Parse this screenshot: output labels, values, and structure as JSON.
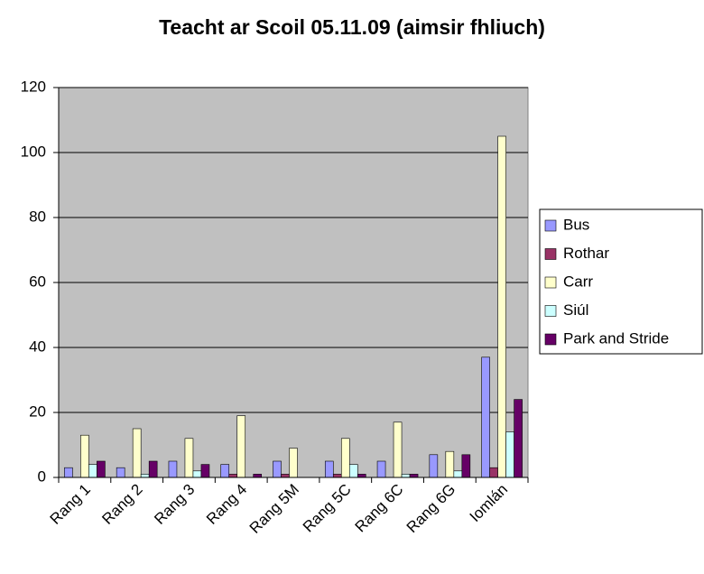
{
  "chart_data": {
    "type": "bar",
    "title": "Teacht ar Scoil 05.11.09 (aimsir fhliuch)",
    "categories": [
      "Rang 1",
      "Rang 2",
      "Rang 3",
      "Rang 4",
      "Rang 5M",
      "Rang 5C",
      "Rang 6C",
      "Rang 6G",
      "Iomlán"
    ],
    "series": [
      {
        "name": "Bus",
        "color": "#9999ff",
        "values": [
          3,
          3,
          5,
          4,
          5,
          5,
          5,
          7,
          37
        ]
      },
      {
        "name": "Rothar",
        "color": "#993366",
        "values": [
          0,
          0,
          0,
          1,
          1,
          1,
          0,
          0,
          3
        ]
      },
      {
        "name": "Carr",
        "color": "#ffffcc",
        "values": [
          13,
          15,
          12,
          19,
          9,
          12,
          17,
          8,
          105
        ]
      },
      {
        "name": "Siúl",
        "color": "#ccffff",
        "values": [
          4,
          1,
          2,
          0,
          0,
          4,
          1,
          2,
          14
        ]
      },
      {
        "name": "Park and Stride",
        "color": "#660066",
        "values": [
          5,
          5,
          4,
          1,
          0,
          1,
          1,
          7,
          24
        ]
      }
    ],
    "ylim": [
      0,
      120
    ],
    "yticks": [
      0,
      20,
      40,
      60,
      80,
      100,
      120
    ],
    "grid": true,
    "legend": "right",
    "plot_background": "#c0c0c0"
  }
}
